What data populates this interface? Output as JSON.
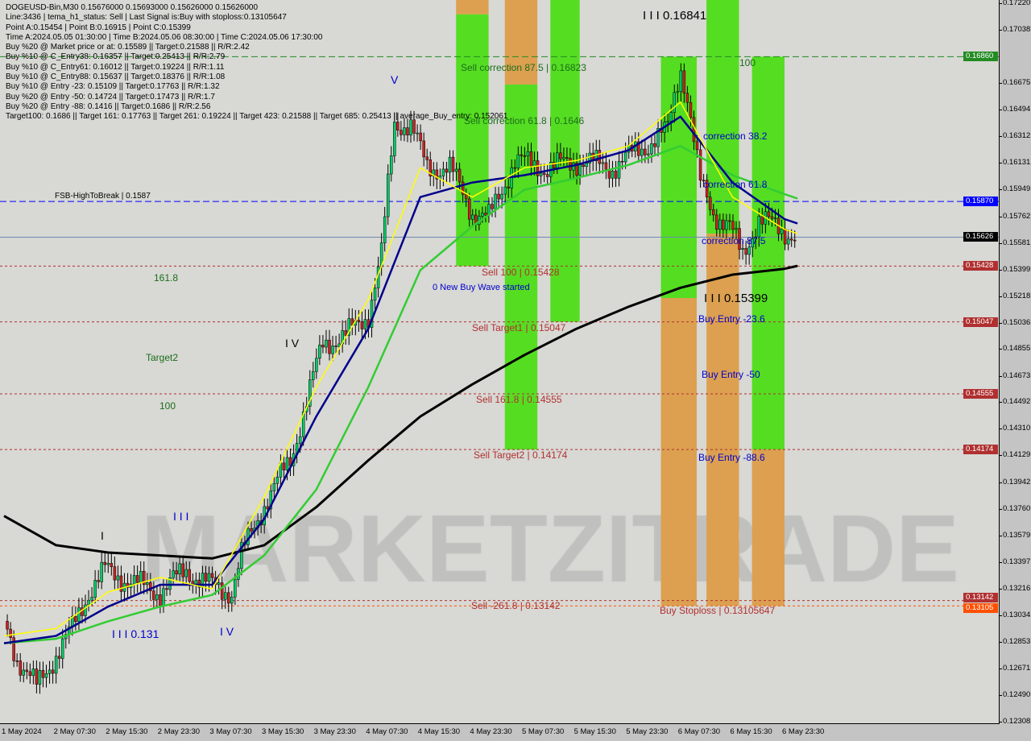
{
  "header": {
    "lines": [
      "DOGEUSD-Bin,M30  0.15676000 0.15693000 0.15626000 0.15626000",
      "Line:3436 | tema_h1_status: Sell | Last Signal is:Buy with stoploss:0.13105647",
      "Point A:0.15454 | Point B:0.16915 | Point C:0.15399",
      "Time A:2024.05.05 01:30:00 | Time B:2024.05.06 08:30:00 | Time C:2024.05.06 17:30:00",
      "Buy %20 @ Market price or at: 0.15589 || Target:0.21588 || R/R:2.42",
      "Buy %10 @ C_Entry38: 0.16357 || Target:0.25413 || R/R:2.79",
      "Buy %10 @ C_Entry61: 0.16012 || Target:0.19224 || R/R:1.11",
      "Buy %10 @ C_Entry88: 0.15637 || Target:0.18376 || R/R:1.08",
      "Buy %10 @ Entry -23: 0.15109 || Target:0.17763 || R/R:1.32",
      "Buy %20 @ Entry -50: 0.14724 || Target:0.17473 || R/R:1.7",
      "Buy %20 @ Entry -88: 0.1416 || Target:0.1686 || R/R:2.56",
      "Target100: 0.1686 || Target 161: 0.17763 || Target 261: 0.19224 || Target 423: 0.21588 || Target 685: 0.25413 || average_Buy_entry: 0.152061"
    ]
  },
  "watermark": "MARKETZITRADE",
  "chart_data": {
    "type": "candlestick",
    "symbol": "DOGEUSD-Bin",
    "timeframe": "M30",
    "ylim": [
      0.12308,
      0.1722
    ],
    "y_ticks": [
      "0.17220",
      "0.17038",
      "0.16675",
      "0.16494",
      "0.16312",
      "0.16131",
      "0.15949",
      "0.15762",
      "0.15581",
      "0.15399",
      "0.15218",
      "0.15036",
      "0.14855",
      "0.14673",
      "0.14492",
      "0.14310",
      "0.14129",
      "0.13942",
      "0.13760",
      "0.13579",
      "0.13397",
      "0.13216",
      "0.13034",
      "0.12853",
      "0.12671",
      "0.12490",
      "0.12308"
    ],
    "x_ticks": [
      "1 May 2024",
      "2 May 07:30",
      "2 May 15:30",
      "2 May 23:30",
      "3 May 07:30",
      "3 May 15:30",
      "3 May 23:30",
      "4 May 07:30",
      "4 May 15:30",
      "4 May 23:30",
      "5 May 07:30",
      "5 May 15:30",
      "5 May 23:30",
      "6 May 07:30",
      "6 May 15:30",
      "6 May 23:30"
    ],
    "x_tick_times": [
      "2024-05-01 23:30",
      "2024-05-02 07:30",
      "2024-05-02 15:30",
      "2024-05-02 23:30",
      "2024-05-03 07:30",
      "2024-05-03 15:30",
      "2024-05-03 23:30",
      "2024-05-04 07:30",
      "2024-05-04 15:30",
      "2024-05-04 23:30",
      "2024-05-05 07:30",
      "2024-05-05 15:30",
      "2024-05-05 23:30",
      "2024-05-06 07:30",
      "2024-05-06 15:30",
      "2024-05-06 23:30"
    ],
    "price_path": [
      [
        "2024-05-01 23:30",
        0.13
      ],
      [
        "2024-05-02 01:30",
        0.1275
      ],
      [
        "2024-05-02 04:30",
        0.1255
      ],
      [
        "2024-05-02 06:30",
        0.127
      ],
      [
        "2024-05-02 10:00",
        0.1295
      ],
      [
        "2024-05-02 12:30",
        0.132
      ],
      [
        "2024-05-02 15:00",
        0.1335
      ],
      [
        "2024-05-02 20:00",
        0.1325
      ],
      [
        "2024-05-02 23:30",
        0.132
      ],
      [
        "2024-05-03 03:30",
        0.1335
      ],
      [
        "2024-05-03 07:00",
        0.1325
      ],
      [
        "2024-05-03 10:30",
        0.132
      ],
      [
        "2024-05-03 12:00",
        0.1345
      ],
      [
        "2024-05-03 15:30",
        0.138
      ],
      [
        "2024-05-03 19:30",
        0.141
      ],
      [
        "2024-05-03 22:00",
        0.145
      ],
      [
        "2024-05-04 00:30",
        0.149
      ],
      [
        "2024-05-04 04:00",
        0.1495
      ],
      [
        "2024-05-04 07:30",
        0.151
      ],
      [
        "2024-05-04 09:30",
        0.155
      ],
      [
        "2024-05-04 11:30",
        0.164
      ],
      [
        "2024-05-04 14:00",
        0.164
      ],
      [
        "2024-05-04 16:30",
        0.161
      ],
      [
        "2024-05-04 20:00",
        0.161
      ],
      [
        "2024-05-04 23:30",
        0.158
      ],
      [
        "2024-05-05 02:00",
        0.1575
      ],
      [
        "2024-05-05 06:00",
        0.1615
      ],
      [
        "2024-05-05 11:00",
        0.161
      ],
      [
        "2024-05-05 16:00",
        0.1615
      ],
      [
        "2024-05-05 21:00",
        0.161
      ],
      [
        "2024-05-06 02:00",
        0.1625
      ],
      [
        "2024-05-06 05:30",
        0.1635
      ],
      [
        "2024-05-06 07:30",
        0.168
      ],
      [
        "2024-05-06 08:30",
        0.166
      ],
      [
        "2024-05-06 10:30",
        0.16
      ],
      [
        "2024-05-06 12:30",
        0.158
      ],
      [
        "2024-05-06 15:00",
        0.157
      ],
      [
        "2024-05-06 17:00",
        0.155
      ],
      [
        "2024-05-06 19:30",
        0.1575
      ],
      [
        "2024-05-06 22:00",
        0.157
      ],
      [
        "2024-05-07 01:30",
        0.15626
      ]
    ],
    "ma_times": [
      "2024-05-01 23:30",
      "2024-05-02 07:30",
      "2024-05-02 15:30",
      "2024-05-02 23:30",
      "2024-05-03 07:30",
      "2024-05-03 15:30",
      "2024-05-03 23:30",
      "2024-05-04 07:30",
      "2024-05-04 15:30",
      "2024-05-04 23:30",
      "2024-05-05 07:30",
      "2024-05-05 15:30",
      "2024-05-05 23:30",
      "2024-05-06 07:30",
      "2024-05-06 15:30",
      "2024-05-06 23:30",
      "2024-05-07 01:30"
    ],
    "series": [
      {
        "color": "#000000",
        "values": [
          0.1372,
          0.1352,
          0.1347,
          0.1345,
          0.1343,
          0.1352,
          0.1378,
          0.141,
          0.144,
          0.1462,
          0.1482,
          0.15,
          0.1515,
          0.1528,
          0.1537,
          0.1541,
          0.1543
        ]
      },
      {
        "color": "#33cc33",
        "values": [
          0.1285,
          0.1288,
          0.13,
          0.131,
          0.1318,
          0.1345,
          0.139,
          0.146,
          0.154,
          0.157,
          0.1595,
          0.1603,
          0.1612,
          0.1625,
          0.1605,
          0.1592,
          0.1589
        ]
      },
      {
        "color": "#00008b",
        "values": [
          0.1285,
          0.129,
          0.131,
          0.1325,
          0.1325,
          0.137,
          0.144,
          0.15,
          0.159,
          0.16,
          0.1605,
          0.1612,
          0.1622,
          0.1645,
          0.16,
          0.1575,
          0.1572
        ]
      },
      {
        "color": "#ffff00",
        "values": [
          0.129,
          0.1295,
          0.132,
          0.133,
          0.1322,
          0.1385,
          0.146,
          0.152,
          0.161,
          0.159,
          0.161,
          0.1615,
          0.1625,
          0.1655,
          0.159,
          0.1568,
          0.1565
        ]
      }
    ],
    "zones": [
      {
        "from": "2024-05-04 21:00",
        "to": "2024-05-05 02:00",
        "green": [
          0.1715,
          0.15428
        ],
        "orange": [
          0.1725,
          0.1715
        ]
      },
      {
        "from": "2024-05-05 04:30",
        "to": "2024-05-05 09:30",
        "green": [
          0.1667,
          0.14174
        ],
        "orange": [
          0.1725,
          0.1667
        ]
      },
      {
        "from": "2024-05-05 11:30",
        "to": "2024-05-05 16:00",
        "green": [
          0.1725,
          0.15047
        ]
      },
      {
        "from": "2024-05-06 04:30",
        "to": "2024-05-06 10:00",
        "green": [
          0.1686,
          0.1521
        ],
        "orange": [
          0.1521,
          0.13105
        ]
      },
      {
        "from": "2024-05-06 11:30",
        "to": "2024-05-06 16:30",
        "green": [
          0.1725,
          0.1565
        ],
        "orange": [
          0.1565,
          0.13105
        ]
      },
      {
        "from": "2024-05-06 18:30",
        "to": "2024-05-06 23:30",
        "green": [
          0.1686,
          0.14174
        ],
        "orange": [
          0.14174,
          0.13105
        ]
      }
    ],
    "levels": [
      {
        "price": 0.1686,
        "label": "0.16860",
        "color": "#228b22",
        "style": "dash"
      },
      {
        "price": 0.1587,
        "label": "0.15870",
        "color": "#0000ff",
        "style": "dash"
      },
      {
        "price": 0.15626,
        "label": "0.15626",
        "color": "#000000",
        "line": "#6a8caf",
        "style": "solid"
      },
      {
        "price": 0.15428,
        "label": "0.15428",
        "color": "#b03030",
        "style": "dot"
      },
      {
        "price": 0.15047,
        "label": "0.15047",
        "color": "#b03030",
        "style": "dot"
      },
      {
        "price": 0.14555,
        "label": "0.14555",
        "color": "#b03030",
        "style": "dot"
      },
      {
        "price": 0.14174,
        "label": "0.14174",
        "color": "#b03030",
        "style": "dot"
      },
      {
        "price": 0.13142,
        "label": "0.13142",
        "color": "#b03030",
        "style": "dot"
      },
      {
        "price": 0.13105,
        "label": "0.13105",
        "color": "#ff5000",
        "style": "dot"
      }
    ],
    "annotations": {
      "sell_corr_875": "Sell correction 87.5 | 0.16823",
      "sell_corr_618": "Sell correction 61.8 | 0.1646",
      "wave_iii_top": "I I I 0.16841",
      "level_100_right": "100",
      "corr_382": "correction 38.2",
      "corr_618": "correction 61.8",
      "corr_875": "correction 87.5",
      "fsb": "FSB-HighToBreak | 0.1587",
      "fib_1618": "161.8",
      "target2": "Target2",
      "fib_100": "100",
      "sell_100": "Sell 100 | 0.15428",
      "new_wave": "0 New Buy Wave started",
      "sell_t1": "Sell Target1 | 0.15047",
      "sell_1618": "Sell 161.8 | 0.14555",
      "sell_t2": "Sell Target2 | 0.14174",
      "sell_2618": "Sell -261.8 | 0.13142",
      "wave_iii_c": "I I I 0.15399",
      "buy_236": "Buy Entry -23.6",
      "buy_50": "Buy Entry -50",
      "buy_886": "Buy Entry -88.6",
      "buy_sl": "Buy Stoploss | 0.13105647",
      "wave_iv": "I V",
      "wave_iii_low": "I I I",
      "wave_i": "I",
      "wave_iii_131": "I I I 0.131",
      "wave_iv_low": "I V",
      "wave_v": "V"
    }
  }
}
